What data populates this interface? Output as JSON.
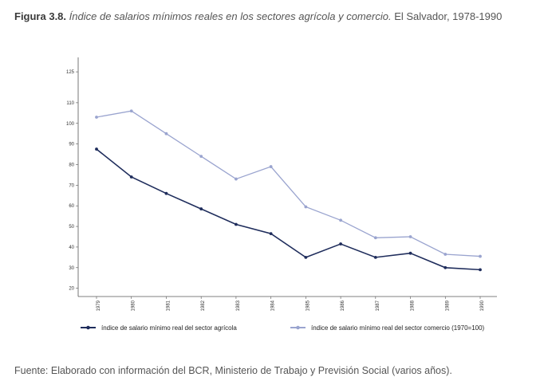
{
  "header": {
    "figure_label": "Figura 3.8.",
    "title": "Índice de salarios mínimos reales en los sectores agrícola y comercio.",
    "subtitle": "El Salvador, 1978-1990"
  },
  "footer": {
    "source": "Fuente: Elaborado con información del BCR, Ministerio de Trabajo y Previsión Social (varios años)."
  },
  "chart_data": {
    "type": "line",
    "title": "",
    "xlabel": "",
    "ylabel": "",
    "categories": [
      "1979",
      "1980",
      "1981",
      "1982",
      "1983",
      "1984",
      "1985",
      "1986",
      "1987",
      "1988",
      "1989",
      "1990"
    ],
    "y_ticks": [
      20,
      30,
      40,
      50,
      60,
      70,
      80,
      90,
      100,
      110,
      125
    ],
    "ylim": [
      16,
      132
    ],
    "grid": false,
    "legend_position": "bottom",
    "series": [
      {
        "name": "índice de salario mínimo real del sector agrícola",
        "color": "#1f2d5c",
        "values": [
          87.5,
          74,
          66,
          58.5,
          51,
          46.5,
          35,
          41.5,
          35,
          37,
          30,
          29
        ]
      },
      {
        "name": "índice de salario mínimo real del sector comercio (1970=100)",
        "color": "#9aa4cf",
        "values": [
          103,
          106,
          95,
          84,
          73,
          79,
          59.5,
          53,
          44.5,
          45,
          36.5,
          35.5
        ]
      }
    ]
  }
}
